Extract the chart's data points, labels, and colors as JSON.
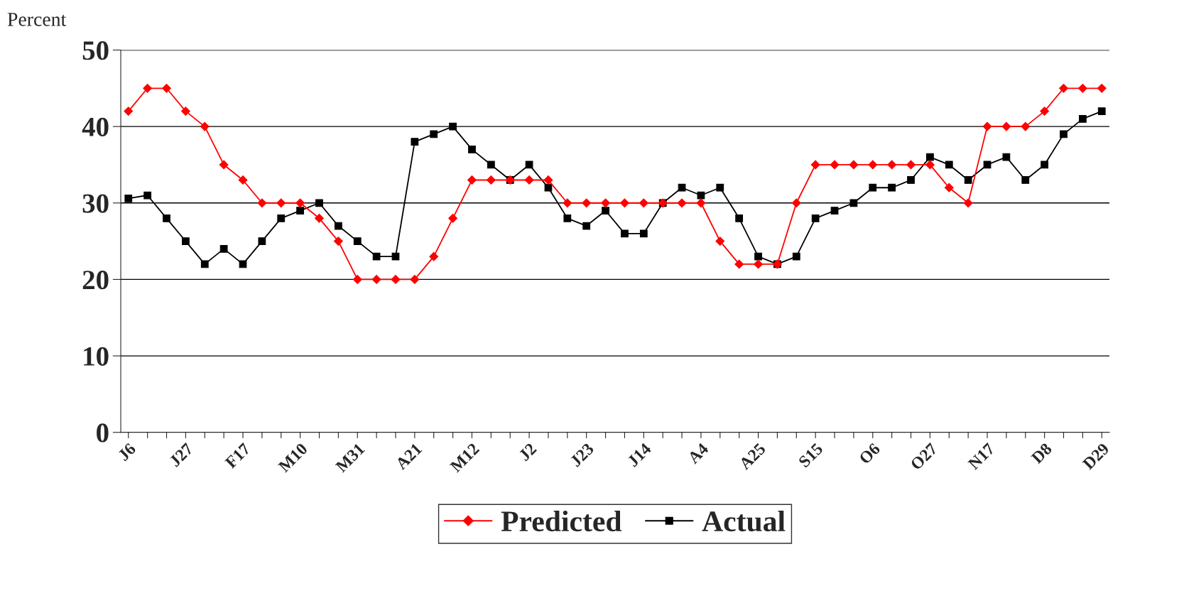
{
  "chart_data": {
    "type": "line",
    "ylabel": "Percent",
    "categories": [
      "J6",
      null,
      null,
      "J27",
      null,
      null,
      "F17",
      null,
      null,
      "M10",
      null,
      null,
      "M31",
      null,
      null,
      "A21",
      null,
      null,
      "M12",
      null,
      null,
      "J2",
      null,
      null,
      "J23",
      null,
      null,
      "J14",
      null,
      null,
      "A4",
      null,
      null,
      "A25",
      null,
      null,
      "S15",
      null,
      null,
      "O6",
      null,
      null,
      "O27",
      null,
      null,
      "N17",
      null,
      null,
      "D8",
      null,
      null,
      "D29"
    ],
    "series": [
      {
        "name": "Predicted",
        "color": "#ff0000",
        "marker": "diamond",
        "values": [
          42,
          45,
          45,
          42,
          40,
          35,
          33,
          30,
          30,
          30,
          28,
          25,
          20,
          20,
          20,
          20,
          23,
          28,
          33,
          33,
          33,
          33,
          33,
          30,
          30,
          30,
          30,
          30,
          30,
          30,
          30,
          25,
          22,
          22,
          22,
          30,
          35,
          35,
          35,
          35,
          35,
          35,
          35,
          32,
          30,
          40,
          40,
          40,
          42,
          45,
          45,
          45
        ]
      },
      {
        "name": "Actual",
        "color": "#000000",
        "marker": "square",
        "values": [
          30.6,
          31,
          28,
          25,
          22,
          24,
          22,
          25,
          28,
          29,
          30,
          27,
          25,
          23,
          23,
          38,
          39,
          40,
          37,
          35,
          33,
          35,
          32,
          28,
          27,
          29,
          26,
          26,
          30,
          32,
          31,
          32,
          28,
          23,
          22,
          23,
          28,
          29,
          30,
          32,
          32,
          33,
          36,
          35,
          33,
          35,
          36,
          33,
          35,
          39,
          41,
          42
        ]
      }
    ],
    "ylim": [
      0,
      50
    ],
    "yticks": [
      0,
      10,
      20,
      30,
      40,
      50
    ],
    "grid": "y",
    "legend": "bottom"
  }
}
